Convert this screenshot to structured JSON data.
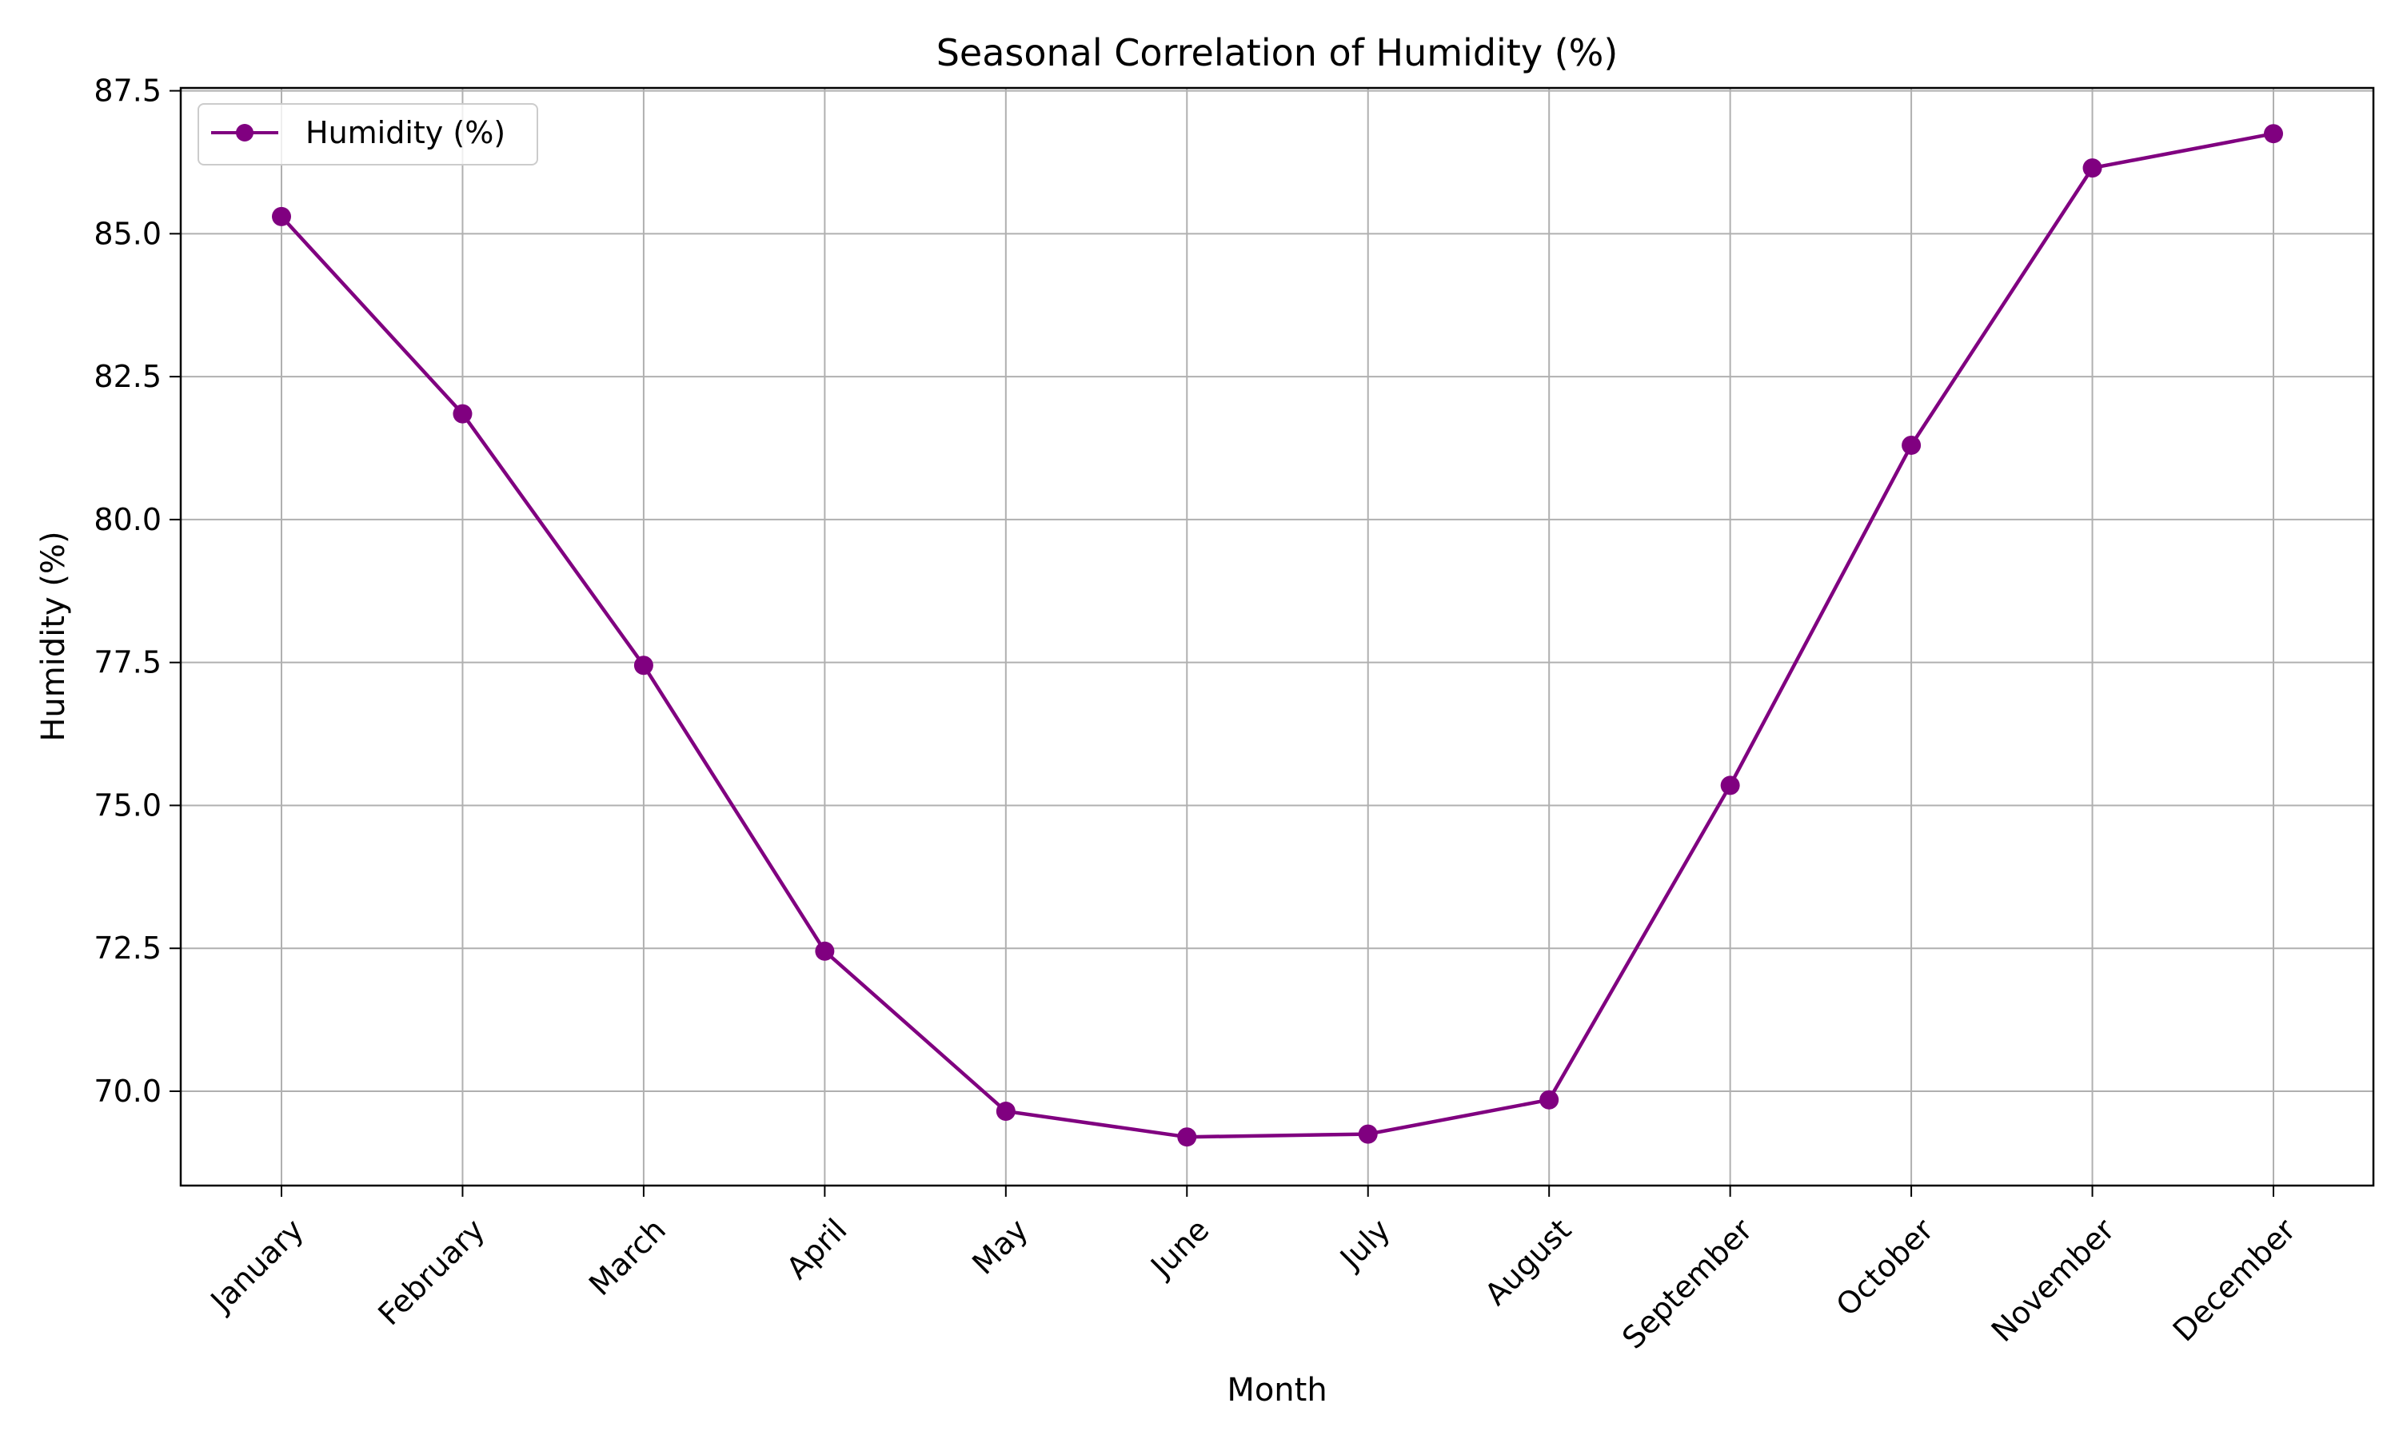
{
  "chart_data": {
    "type": "line",
    "title": "Seasonal Correlation of Humidity (%)",
    "xlabel": "Month",
    "ylabel": "Humidity (%)",
    "categories": [
      "January",
      "February",
      "March",
      "April",
      "May",
      "June",
      "July",
      "August",
      "September",
      "October",
      "November",
      "December"
    ],
    "series": [
      {
        "name": "Humidity (%)",
        "values": [
          85.3,
          81.85,
          77.45,
          72.45,
          69.65,
          69.2,
          69.25,
          69.85,
          75.35,
          81.3,
          86.15,
          86.75
        ],
        "color": "#800080",
        "marker": "circle"
      }
    ],
    "ylim": [
      68.35,
      87.55
    ],
    "yticks": [
      "70.0",
      "72.5",
      "75.0",
      "77.5",
      "80.0",
      "82.5",
      "85.0",
      "87.5"
    ],
    "grid": true,
    "legend_position": "upper-left"
  }
}
